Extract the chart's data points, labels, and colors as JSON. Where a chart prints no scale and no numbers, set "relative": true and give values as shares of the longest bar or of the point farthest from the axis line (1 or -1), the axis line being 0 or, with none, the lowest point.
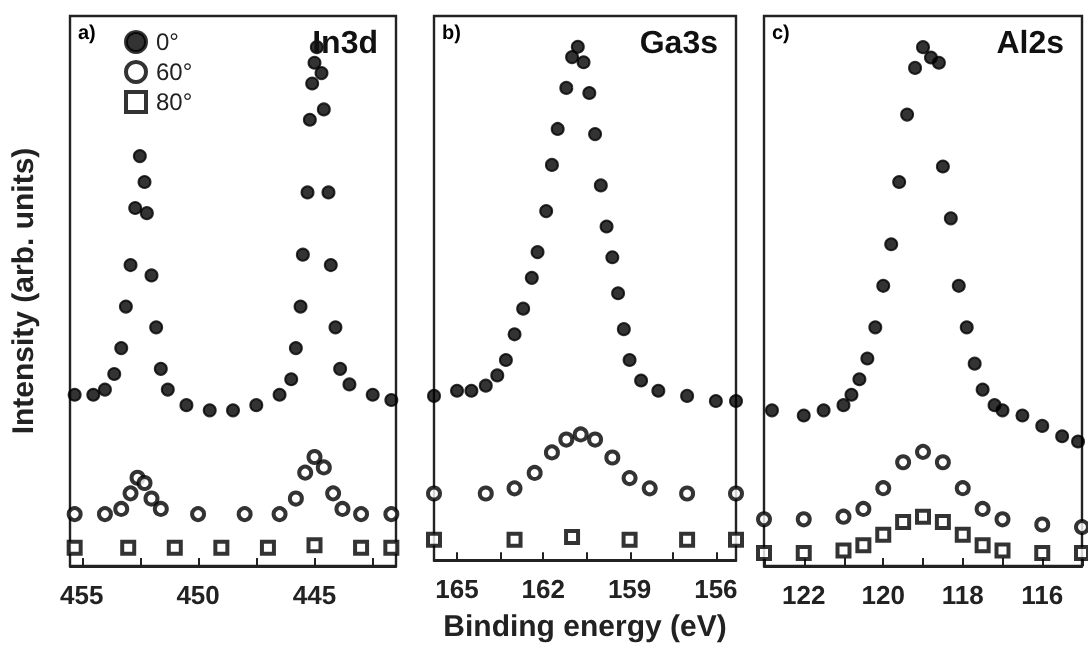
{
  "chart_data": [
    {
      "type": "scatter",
      "title": "In3d",
      "annotations": [
        "a)"
      ],
      "ylabel": "Intensity (arb. units)",
      "relative": true,
      "legend": "top left",
      "grid": false,
      "xlim": [
        455.5,
        441.5
      ],
      "xticks": [
        455,
        {
          "value": 452.5,
          "label": null
        },
        450,
        {
          "value": 447.5,
          "label": null
        },
        445,
        {
          "value": 442.5,
          "label": null
        }
      ],
      "series": [
        {
          "name": "0°",
          "color": "#000000",
          "marker": "circle",
          "x": [
            455.3,
            454.5,
            454,
            453.6,
            453.3,
            453.1,
            452.9,
            452.7,
            452.5,
            452.3,
            452.2,
            452,
            451.8,
            451.6,
            451.3,
            450.5,
            449.5,
            448.5,
            447.5,
            446.5,
            446,
            445.8,
            445.6,
            445.5,
            445.3,
            445.2,
            445.1,
            445,
            444.9,
            444.7,
            444.6,
            444.4,
            444.3,
            444.1,
            443.9,
            443.5,
            442.5,
            441.7
          ],
          "values": [
            0.33,
            0.33,
            0.34,
            0.37,
            0.42,
            0.5,
            0.58,
            0.69,
            0.79,
            0.74,
            0.68,
            0.56,
            0.46,
            0.38,
            0.34,
            0.31,
            0.3,
            0.3,
            0.31,
            0.33,
            0.36,
            0.42,
            0.5,
            0.6,
            0.72,
            0.86,
            0.93,
            0.97,
            1,
            0.95,
            0.88,
            0.72,
            0.58,
            0.46,
            0.38,
            0.35,
            0.33,
            0.32
          ]
        },
        {
          "name": "60°",
          "color": "#000000",
          "marker": "circle",
          "x": [
            455.3,
            454,
            453.3,
            452.9,
            452.6,
            452.3,
            452,
            451.6,
            450,
            448,
            446.5,
            445.8,
            445.4,
            445,
            444.6,
            444.2,
            443.8,
            443,
            441.7
          ],
          "values": [
            0.1,
            0.1,
            0.11,
            0.14,
            0.17,
            0.16,
            0.13,
            0.11,
            0.1,
            0.1,
            0.1,
            0.13,
            0.18,
            0.21,
            0.19,
            0.14,
            0.11,
            0.1,
            0.1
          ]
        },
        {
          "name": "80°",
          "color": "#000000",
          "marker": "square",
          "x": [
            455.3,
            453,
            451,
            449,
            447,
            445,
            443,
            441.7
          ],
          "values": [
            0.035,
            0.035,
            0.035,
            0.035,
            0.035,
            0.04,
            0.035,
            0.035
          ]
        }
      ]
    },
    {
      "type": "scatter",
      "title": "Ga3s",
      "annotations": [
        "b)"
      ],
      "xlabel": "Binding energy (eV)",
      "relative": true,
      "legend": false,
      "grid": false,
      "xlim": [
        165.8,
        155.3
      ],
      "xticks": [
        165,
        {
          "value": 163.5,
          "label": null
        },
        162,
        {
          "value": 160.5,
          "label": null
        },
        159,
        {
          "value": 157.5,
          "label": null
        },
        156
      ],
      "series": [
        {
          "color": "#000000",
          "marker": "circle",
          "x": [
            165.8,
            165,
            164.5,
            164,
            163.6,
            163.3,
            163,
            162.7,
            162.4,
            162.2,
            161.9,
            161.7,
            161.5,
            161.2,
            161,
            160.8,
            160.6,
            160.4,
            160.2,
            160,
            159.8,
            159.6,
            159.4,
            159.2,
            159,
            158.6,
            158,
            157,
            156,
            155.3
          ],
          "values": [
            0.32,
            0.33,
            0.33,
            0.34,
            0.36,
            0.39,
            0.44,
            0.49,
            0.55,
            0.6,
            0.68,
            0.77,
            0.84,
            0.92,
            0.98,
            1,
            0.97,
            0.91,
            0.83,
            0.73,
            0.65,
            0.59,
            0.52,
            0.45,
            0.39,
            0.35,
            0.33,
            0.32,
            0.31,
            0.31
          ]
        },
        {
          "color": "#000000",
          "marker": "circle",
          "x": [
            165.8,
            164,
            163,
            162.3,
            161.7,
            161.2,
            160.7,
            160.2,
            159.6,
            159,
            158.3,
            157,
            155.3
          ],
          "values": [
            0.13,
            0.13,
            0.14,
            0.17,
            0.21,
            0.235,
            0.245,
            0.235,
            0.2,
            0.16,
            0.14,
            0.13,
            0.13
          ]
        },
        {
          "color": "#000000",
          "marker": "square",
          "x": [
            165.8,
            163,
            161,
            159,
            157,
            155.3
          ],
          "values": [
            0.04,
            0.04,
            0.045,
            0.04,
            0.04,
            0.04
          ]
        }
      ]
    },
    {
      "type": "scatter",
      "title": "Al2s",
      "annotations": [
        "c)"
      ],
      "relative": true,
      "legend": false,
      "grid": false,
      "xlim": [
        123,
        115
      ],
      "xticks": [
        {
          "value": 123,
          "label": null
        },
        122,
        {
          "value": 121,
          "label": null
        },
        120,
        {
          "value": 119,
          "label": null
        },
        118,
        {
          "value": 117,
          "label": null
        },
        116,
        {
          "value": 115,
          "label": null
        }
      ],
      "series": [
        {
          "color": "#000000",
          "marker": "circle",
          "x": [
            122.8,
            122,
            121.5,
            121,
            120.8,
            120.6,
            120.4,
            120.2,
            120,
            119.8,
            119.6,
            119.4,
            119.2,
            119,
            118.8,
            118.6,
            118.5,
            118.3,
            118.1,
            117.9,
            117.7,
            117.5,
            117.2,
            117,
            116.5,
            116,
            115.5,
            115.1
          ],
          "values": [
            0.3,
            0.29,
            0.3,
            0.31,
            0.33,
            0.36,
            0.4,
            0.46,
            0.54,
            0.62,
            0.74,
            0.87,
            0.96,
            1,
            0.98,
            0.97,
            0.77,
            0.67,
            0.54,
            0.46,
            0.39,
            0.34,
            0.31,
            0.3,
            0.29,
            0.27,
            0.25,
            0.24
          ]
        },
        {
          "color": "#000000",
          "marker": "circle",
          "x": [
            123,
            122,
            121,
            120.5,
            120,
            119.5,
            119,
            118.5,
            118,
            117.5,
            117,
            116,
            115
          ],
          "values": [
            0.09,
            0.09,
            0.095,
            0.11,
            0.15,
            0.2,
            0.22,
            0.2,
            0.15,
            0.11,
            0.09,
            0.08,
            0.075
          ]
        },
        {
          "color": "#000000",
          "marker": "square",
          "x": [
            123,
            122,
            121,
            120.5,
            120,
            119.5,
            119,
            118.5,
            118,
            117.5,
            117,
            116,
            115
          ],
          "values": [
            0.025,
            0.025,
            0.03,
            0.04,
            0.06,
            0.085,
            0.095,
            0.085,
            0.06,
            0.04,
            0.03,
            0.025,
            0.025
          ]
        }
      ]
    }
  ]
}
